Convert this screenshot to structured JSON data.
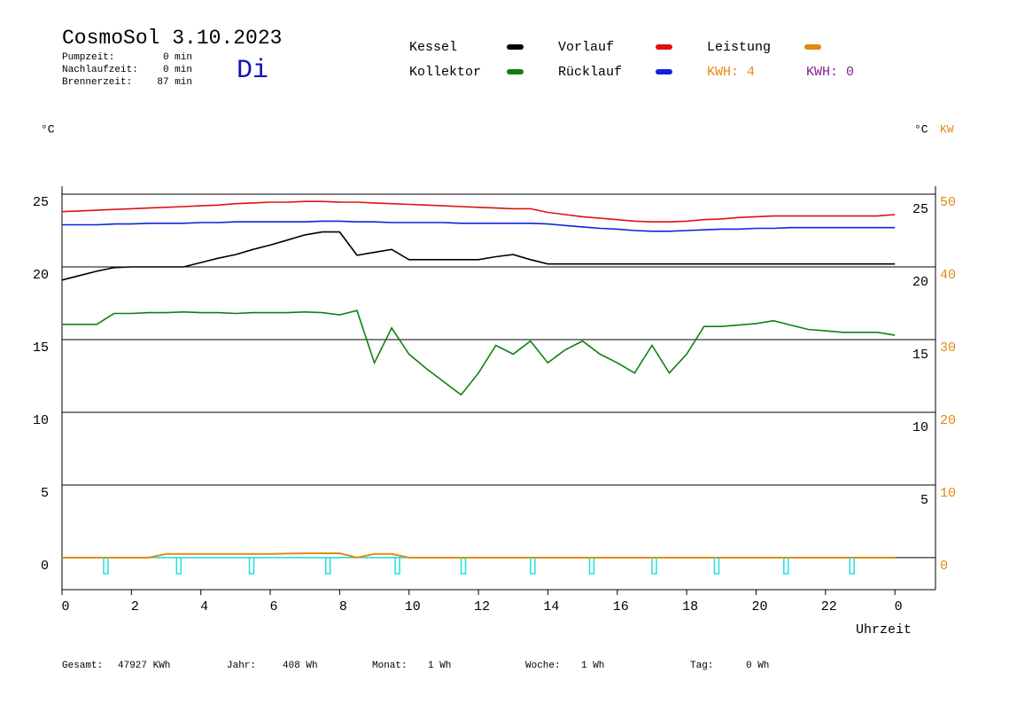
{
  "chart_data": {
    "type": "line",
    "title": "CosmoSol 3.10.2023",
    "weekday": "Di",
    "stats": [
      {
        "label": "Pumpzeit:",
        "value": "0 min"
      },
      {
        "label": "Nachlaufzeit:",
        "value": "0 min"
      },
      {
        "label": "Brennerzeit:",
        "value": "87 min"
      }
    ],
    "kwh": [
      {
        "label": "KWH: 4",
        "color": "#e08a10"
      },
      {
        "label": "KWH: 0",
        "color": "#8a2090"
      }
    ],
    "y_label": "°C",
    "y_right_label": "°C",
    "y2_label": "KW",
    "x_label": "Uhrzeit",
    "x": [
      0,
      0.5,
      1,
      1.5,
      2,
      2.5,
      3,
      3.5,
      4,
      4.5,
      5,
      5.5,
      6,
      6.5,
      7,
      7.5,
      8,
      8.5,
      9,
      9.5,
      10,
      10.5,
      11,
      11.5,
      12,
      12.5,
      13,
      13.5,
      14,
      14.5,
      15,
      15.5,
      16,
      16.5,
      17,
      17.5,
      18,
      18.5,
      19,
      19.5,
      20,
      20.5,
      21,
      21.5,
      22,
      22.5,
      23,
      23.5,
      24
    ],
    "series": [
      {
        "name": "Kessel",
        "color": "#000000",
        "values": [
          19.1,
          19.4,
          19.7,
          19.95,
          20,
          20,
          20,
          20,
          20.3,
          20.6,
          20.85,
          21.2,
          21.5,
          21.85,
          22.2,
          22.4,
          22.4,
          20.8,
          21,
          21.2,
          20.5,
          20.5,
          20.5,
          20.5,
          20.5,
          20.7,
          20.85,
          20.5,
          20.2,
          20.2,
          20.2,
          20.2,
          20.2,
          20.2,
          20.2,
          20.2,
          20.2,
          20.2,
          20.2,
          20.2,
          20.2,
          20.2,
          20.2,
          20.2,
          20.2,
          20.2,
          20.2,
          20.2,
          20.2
        ]
      },
      {
        "name": "Kollektor",
        "color": "#108010",
        "values": [
          16.05,
          16.05,
          16.05,
          16.8,
          16.8,
          16.85,
          16.85,
          16.9,
          16.85,
          16.85,
          16.8,
          16.85,
          16.85,
          16.85,
          16.9,
          16.85,
          16.7,
          17,
          13.4,
          15.8,
          14,
          13,
          12.1,
          11.2,
          12.7,
          14.6,
          14,
          14.9,
          13.4,
          14.3,
          14.9,
          14,
          13.4,
          12.7,
          14.6,
          12.7,
          14,
          15.9,
          15.9,
          16,
          16.1,
          16.3,
          16,
          15.7,
          15.6,
          15.5,
          15.5,
          15.5,
          15.3
        ]
      },
      {
        "name": "Vorlauf",
        "color": "#e01010",
        "values": [
          23.8,
          23.85,
          23.9,
          23.95,
          24,
          24.05,
          24.1,
          24.15,
          24.2,
          24.25,
          24.35,
          24.4,
          24.45,
          24.45,
          24.5,
          24.5,
          24.45,
          24.45,
          24.4,
          24.35,
          24.3,
          24.25,
          24.2,
          24.15,
          24.1,
          24.05,
          24,
          24,
          23.75,
          23.6,
          23.45,
          23.35,
          23.25,
          23.15,
          23.1,
          23.1,
          23.15,
          23.25,
          23.3,
          23.4,
          23.45,
          23.5,
          23.5,
          23.5,
          23.5,
          23.5,
          23.5,
          23.5,
          23.6
        ]
      },
      {
        "name": "Rücklauf",
        "color": "#1020e0",
        "values": [
          22.9,
          22.9,
          22.9,
          22.95,
          22.95,
          23,
          23,
          23,
          23.05,
          23.05,
          23.1,
          23.1,
          23.1,
          23.1,
          23.1,
          23.15,
          23.15,
          23.1,
          23.1,
          23.05,
          23.05,
          23.05,
          23.05,
          23,
          23,
          23,
          23,
          23,
          22.95,
          22.85,
          22.75,
          22.65,
          22.6,
          22.5,
          22.45,
          22.45,
          22.5,
          22.55,
          22.6,
          22.6,
          22.65,
          22.65,
          22.7,
          22.7,
          22.7,
          22.7,
          22.7,
          22.7,
          22.7
        ]
      },
      {
        "name": "Leistung",
        "color": "#e08a10",
        "axis": "y2",
        "values": [
          0,
          0,
          0,
          0,
          0,
          0,
          0.5,
          0.5,
          0.5,
          0.5,
          0.5,
          0.5,
          0.5,
          0.55,
          0.6,
          0.6,
          0.6,
          0,
          0.5,
          0.5,
          0,
          0,
          0,
          0,
          0,
          0,
          0,
          0,
          0,
          0,
          0,
          0,
          0,
          0,
          0,
          0,
          0,
          0,
          0,
          0,
          0,
          0,
          0,
          0,
          0,
          0,
          0,
          0,
          0
        ]
      }
    ],
    "pump_color": "#20e0e0",
    "pump_pulses": [
      1.2,
      3.3,
      5.4,
      7.6,
      9.6,
      11.5,
      13.5,
      15.2,
      17,
      18.8,
      20.8,
      22.7
    ],
    "pump_depth": -1.1,
    "xlim": [
      0,
      25.17
    ],
    "xticks": [
      0,
      2,
      4,
      6,
      8,
      10,
      12,
      14,
      16,
      18,
      20,
      22,
      {
        "value": 24,
        "label": "0"
      }
    ],
    "ylim": [
      -2.2,
      25.55
    ],
    "yticks": [
      0,
      5,
      10,
      15,
      20,
      25
    ],
    "yticks_right": [
      5,
      10,
      15,
      20,
      25
    ],
    "y2lim": [
      -4.4,
      51.1
    ],
    "y2ticks": [
      0,
      10,
      20,
      30,
      40,
      50
    ],
    "grid": true,
    "footer": [
      {
        "label": "Gesamt:",
        "value": "47927 KWh"
      },
      {
        "label": "Jahr:",
        "value": "408 Wh"
      },
      {
        "label": "Monat:",
        "value": "1 Wh"
      },
      {
        "label": "Woche:",
        "value": "1 Wh"
      },
      {
        "label": "Tag:",
        "value": "0 Wh"
      }
    ]
  }
}
